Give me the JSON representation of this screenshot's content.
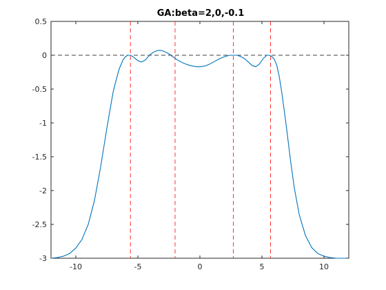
{
  "chart_data": {
    "type": "line",
    "title": "GA:beta=2,0,-0.1",
    "xlabel": "",
    "ylabel": "",
    "xlim": [
      -12,
      12
    ],
    "ylim": [
      -3,
      0.5
    ],
    "x_ticks": [
      -10,
      -5,
      0,
      5,
      10
    ],
    "y_ticks": [
      0.5,
      0,
      -0.5,
      -1,
      -1.5,
      -2,
      -2.5,
      -3
    ],
    "x_tick_labels": [
      "-10",
      "-5",
      "0",
      "5",
      "10"
    ],
    "y_tick_labels": [
      "0.5",
      "0",
      "-0.5",
      "-1",
      "-1.5",
      "-2",
      "-2.5",
      "-3"
    ],
    "grid": false,
    "series": [
      {
        "color": "#0072bd",
        "x": [
          -12,
          -11.5,
          -11,
          -10.5,
          -10,
          -9.5,
          -9,
          -8.5,
          -8,
          -7.5,
          -7,
          -6.8,
          -6.5,
          -6.2,
          -6,
          -5.8,
          -5.6,
          -5.4,
          -5.2,
          -5,
          -4.7,
          -4.4,
          -4.2,
          -4,
          -3.7,
          -3.4,
          -3.1,
          -2.8,
          -2.5,
          -2.2,
          -1.8,
          -1.4,
          -1,
          -0.6,
          -0.2,
          0,
          0.4,
          0.8,
          1.2,
          1.6,
          2,
          2.4,
          2.7,
          3,
          3.3,
          3.6,
          3.9,
          4.2,
          4.5,
          4.8,
          5.1,
          5.4,
          5.6,
          5.8,
          6,
          6.2,
          6.4,
          6.6,
          6.8,
          7,
          7.3,
          7.6,
          8,
          8.5,
          9,
          9.5,
          10,
          10.5,
          11,
          11.5,
          11.8
        ],
        "y": [
          -3.0,
          -2.99,
          -2.97,
          -2.93,
          -2.85,
          -2.72,
          -2.5,
          -2.15,
          -1.65,
          -1.08,
          -0.55,
          -0.4,
          -0.2,
          -0.07,
          -0.02,
          0.0,
          0.0,
          -0.02,
          -0.05,
          -0.08,
          -0.1,
          -0.07,
          -0.03,
          0.01,
          0.05,
          0.07,
          0.07,
          0.05,
          0.02,
          -0.02,
          -0.07,
          -0.11,
          -0.14,
          -0.16,
          -0.17,
          -0.17,
          -0.16,
          -0.13,
          -0.09,
          -0.05,
          -0.02,
          0.0,
          0.0,
          0.0,
          -0.02,
          -0.05,
          -0.1,
          -0.15,
          -0.17,
          -0.13,
          -0.05,
          0.0,
          0.0,
          -0.02,
          -0.06,
          -0.15,
          -0.32,
          -0.55,
          -0.82,
          -1.1,
          -1.55,
          -1.95,
          -2.35,
          -2.66,
          -2.84,
          -2.93,
          -2.97,
          -2.99,
          -3.0,
          -3.0,
          -3.0
        ]
      }
    ],
    "reference_lines": {
      "horizontal": [
        0
      ],
      "horizontal_color": "#000000",
      "vertical": [
        -5.6,
        -2.0,
        2.7,
        5.7
      ],
      "vertical_color": "#ff0000"
    }
  }
}
